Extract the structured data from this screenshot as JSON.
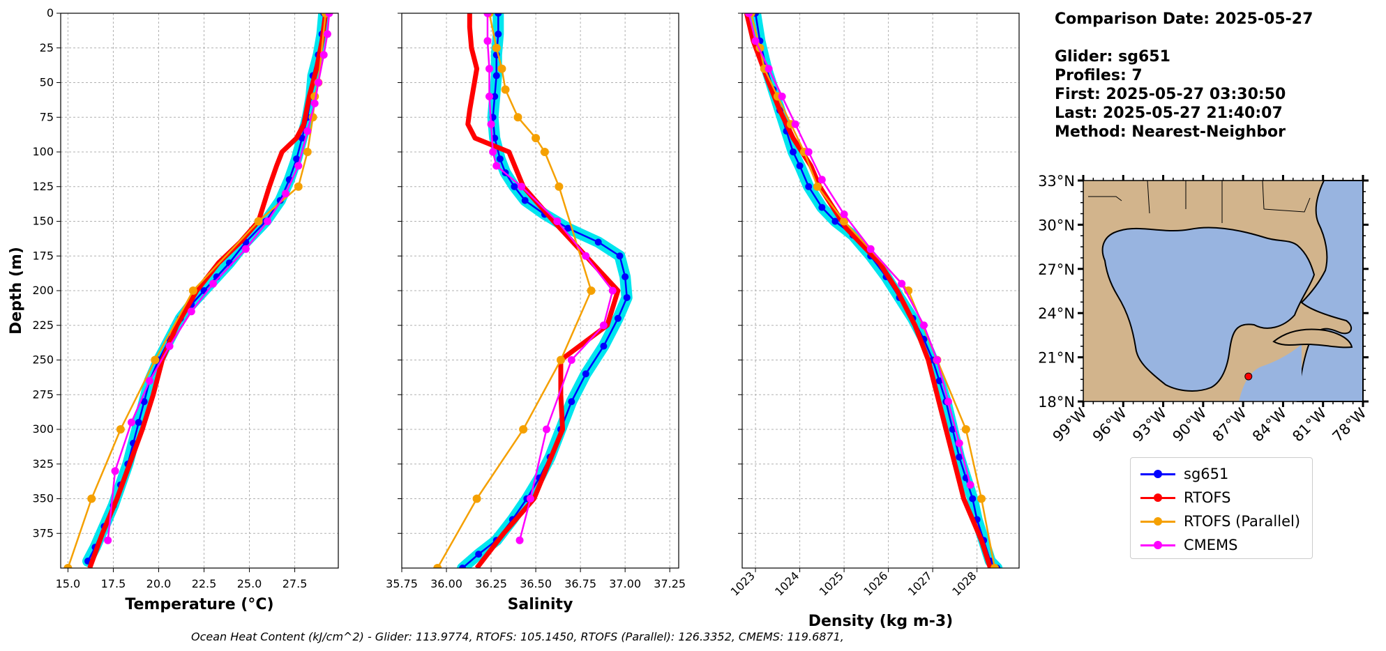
{
  "info": {
    "lines": [
      "Comparison Date: 2025-05-27",
      "",
      "Glider: sg651",
      "Profiles: 7",
      "First: 2025-05-27 03:30:50",
      "Last: 2025-05-27 21:40:07",
      "Method: Nearest-Neighbor"
    ]
  },
  "footer": "Ocean Heat Content (kJ/cm^2) - Glider: 113.9774,  RTOFS: 105.1450,  RTOFS (Parallel): 126.3352,  CMEMS: 119.6871,",
  "colors": {
    "glider": "#0000ff",
    "glider_band": "#00e5ee",
    "rtofs": "#ff0000",
    "rtofs_parallel": "#f5a000",
    "cmems": "#ff00ff",
    "land": "#d2b48c",
    "water": "#98b4e0",
    "grid": "#b0b0b0"
  },
  "legend": {
    "entries": [
      {
        "label": "sg651",
        "color": "#0000ff"
      },
      {
        "label": "RTOFS",
        "color": "#ff0000"
      },
      {
        "label": "RTOFS (Parallel)",
        "color": "#f5a000"
      },
      {
        "label": "CMEMS",
        "color": "#ff00ff"
      }
    ],
    "placement": "below map"
  },
  "chart_data": [
    {
      "type": "line",
      "xlabel": "Temperature (°C)",
      "ylabel": "Depth (m)",
      "xlim": [
        14.6,
        29.9
      ],
      "ylim": [
        400,
        0
      ],
      "xticks": [
        "15.0",
        "17.5",
        "20.0",
        "22.5",
        "25.0",
        "27.5"
      ],
      "yticks": [
        "0",
        "25",
        "50",
        "75",
        "100",
        "125",
        "150",
        "175",
        "200",
        "225",
        "250",
        "275",
        "300",
        "325",
        "350",
        "375"
      ],
      "grid": true,
      "series": [
        {
          "name": "sg651",
          "x": [
            29.1,
            29.0,
            28.8,
            28.5,
            28.4,
            28.2,
            27.9,
            27.6,
            27.2,
            26.7,
            25.9,
            24.8,
            23.9,
            23.2,
            22.5,
            21.8,
            21.2,
            20.6,
            20.0,
            19.5,
            19.2,
            18.9,
            18.6,
            18.3,
            17.9,
            17.5,
            17.0,
            16.5,
            16.1
          ],
          "y": [
            0,
            15,
            30,
            45,
            60,
            75,
            90,
            105,
            120,
            135,
            150,
            165,
            180,
            190,
            200,
            210,
            220,
            235,
            250,
            265,
            280,
            295,
            310,
            325,
            340,
            355,
            370,
            385,
            395
          ]
        },
        {
          "name": "RTOFS",
          "x": [
            29.2,
            29.0,
            28.7,
            28.3,
            28.0,
            27.6,
            26.8,
            26.5,
            26.1,
            25.5,
            24.5,
            23.3,
            22.1,
            21.0,
            20.2,
            19.7,
            19.1,
            18.4,
            17.7,
            16.9,
            16.2
          ],
          "y": [
            0,
            20,
            40,
            60,
            80,
            90,
            100,
            110,
            125,
            150,
            165,
            180,
            200,
            225,
            250,
            275,
            300,
            325,
            350,
            375,
            400
          ]
        },
        {
          "name": "RTOFS (Parallel)",
          "x": [
            29.2,
            28.8,
            28.6,
            28.5,
            28.2,
            27.7,
            25.5,
            21.9,
            19.8,
            17.9,
            16.3,
            15.0
          ],
          "y": [
            0,
            50,
            60,
            75,
            100,
            125,
            150,
            200,
            250,
            300,
            350,
            400
          ]
        },
        {
          "name": "CMEMS",
          "x": [
            29.4,
            29.3,
            29.1,
            28.8,
            28.6,
            28.2,
            27.7,
            27.0,
            26.0,
            24.8,
            23.0,
            21.8,
            20.6,
            19.5,
            18.5,
            17.6,
            17.2
          ],
          "y": [
            0,
            15,
            30,
            50,
            65,
            85,
            110,
            130,
            150,
            170,
            195,
            215,
            240,
            265,
            295,
            330,
            380
          ]
        }
      ]
    },
    {
      "type": "line",
      "xlabel": "Salinity",
      "ylabel": "",
      "xlim": [
        35.75,
        37.3
      ],
      "ylim": [
        400,
        0
      ],
      "xticks": [
        "35.75",
        "36.00",
        "36.25",
        "36.50",
        "36.75",
        "37.00",
        "37.25"
      ],
      "grid": true,
      "series": [
        {
          "name": "sg651",
          "x": [
            36.29,
            36.29,
            36.28,
            36.28,
            36.27,
            36.26,
            36.27,
            36.3,
            36.33,
            36.38,
            36.44,
            36.55,
            36.68,
            36.85,
            36.97,
            37.0,
            37.01,
            36.96,
            36.88,
            36.78,
            36.7,
            36.64,
            36.58,
            36.52,
            36.45,
            36.37,
            36.28,
            36.18,
            36.09
          ],
          "y": [
            0,
            15,
            30,
            45,
            60,
            75,
            90,
            105,
            115,
            125,
            135,
            145,
            155,
            165,
            175,
            190,
            205,
            220,
            240,
            260,
            280,
            300,
            320,
            335,
            350,
            365,
            380,
            390,
            400
          ]
        },
        {
          "name": "RTOFS",
          "x": [
            36.13,
            36.13,
            36.14,
            36.17,
            36.15,
            36.13,
            36.12,
            36.16,
            36.35,
            36.43,
            36.6,
            36.78,
            36.96,
            36.9,
            36.64,
            36.64,
            36.65,
            36.49,
            36.32,
            36.17
          ],
          "y": [
            0,
            10,
            25,
            40,
            55,
            70,
            80,
            90,
            100,
            125,
            150,
            175,
            200,
            225,
            250,
            275,
            300,
            350,
            375,
            400
          ]
        },
        {
          "name": "RTOFS (Parallel)",
          "x": [
            36.24,
            36.28,
            36.31,
            36.33,
            36.4,
            36.5,
            36.55,
            36.63,
            36.81,
            36.64,
            36.43,
            36.17,
            35.95
          ],
          "y": [
            0,
            25,
            40,
            55,
            75,
            90,
            100,
            125,
            200,
            250,
            300,
            350,
            400
          ]
        },
        {
          "name": "CMEMS",
          "x": [
            36.23,
            36.23,
            36.24,
            36.24,
            36.25,
            36.26,
            36.28,
            36.42,
            36.62,
            36.78,
            36.93,
            36.88,
            36.7,
            36.56,
            36.47,
            36.41
          ],
          "y": [
            0,
            20,
            40,
            60,
            80,
            100,
            110,
            125,
            150,
            175,
            200,
            225,
            250,
            300,
            350,
            380
          ]
        }
      ]
    },
    {
      "type": "line",
      "xlabel": "Density (kg m-3)",
      "ylabel": "",
      "xlim": [
        1022.7,
        1028.95
      ],
      "ylim": [
        400,
        0
      ],
      "xticks": [
        "1023",
        "1024",
        "1025",
        "1026",
        "1027",
        "1028"
      ],
      "grid": true,
      "series": [
        {
          "name": "sg651",
          "x": [
            1023.0,
            1023.1,
            1023.25,
            1023.4,
            1023.55,
            1023.7,
            1023.85,
            1024.0,
            1024.2,
            1024.5,
            1024.8,
            1025.2,
            1025.6,
            1025.95,
            1026.25,
            1026.55,
            1026.8,
            1027.0,
            1027.15,
            1027.3,
            1027.45,
            1027.6,
            1027.75,
            1027.9,
            1028.0,
            1028.15,
            1028.3,
            1028.45
          ],
          "y": [
            0,
            20,
            40,
            55,
            70,
            85,
            100,
            110,
            125,
            140,
            150,
            160,
            175,
            190,
            205,
            220,
            235,
            250,
            265,
            280,
            300,
            320,
            335,
            350,
            365,
            380,
            395,
            400
          ]
        },
        {
          "name": "RTOFS",
          "x": [
            1022.8,
            1022.95,
            1023.3,
            1023.55,
            1023.85,
            1024.05,
            1024.25,
            1024.45,
            1024.75,
            1025.05,
            1025.8,
            1026.2,
            1026.6,
            1026.9,
            1027.3,
            1027.7,
            1028.1,
            1028.3
          ],
          "y": [
            0,
            20,
            50,
            70,
            90,
            100,
            110,
            125,
            140,
            155,
            180,
            200,
            225,
            250,
            300,
            350,
            380,
            400
          ]
        },
        {
          "name": "RTOFS (Parallel)",
          "x": [
            1022.9,
            1023.1,
            1023.2,
            1023.5,
            1023.8,
            1024.1,
            1024.4,
            1025.0,
            1026.45,
            1027.1,
            1027.75,
            1028.1,
            1028.4
          ],
          "y": [
            0,
            25,
            40,
            60,
            80,
            100,
            125,
            150,
            200,
            250,
            300,
            350,
            400
          ]
        },
        {
          "name": "CMEMS",
          "x": [
            1022.85,
            1023.0,
            1023.3,
            1023.6,
            1023.9,
            1024.2,
            1024.5,
            1025.0,
            1025.6,
            1026.3,
            1026.8,
            1027.1,
            1027.35,
            1027.6,
            1027.85
          ],
          "y": [
            0,
            20,
            40,
            60,
            80,
            100,
            120,
            145,
            170,
            195,
            225,
            250,
            280,
            310,
            340
          ]
        }
      ]
    },
    {
      "type": "map",
      "lat_ticks": [
        "33°N",
        "30°N",
        "27°N",
        "24°N",
        "21°N",
        "18°N"
      ],
      "lon_ticks": [
        "99°W",
        "96°W",
        "93°W",
        "90°W",
        "87°W",
        "84°W",
        "81°W",
        "78°W"
      ],
      "lon_range": [
        -99,
        -78
      ],
      "lat_range": [
        18,
        33
      ],
      "glider_position": {
        "lon": -86.6,
        "lat": 19.7
      }
    }
  ]
}
